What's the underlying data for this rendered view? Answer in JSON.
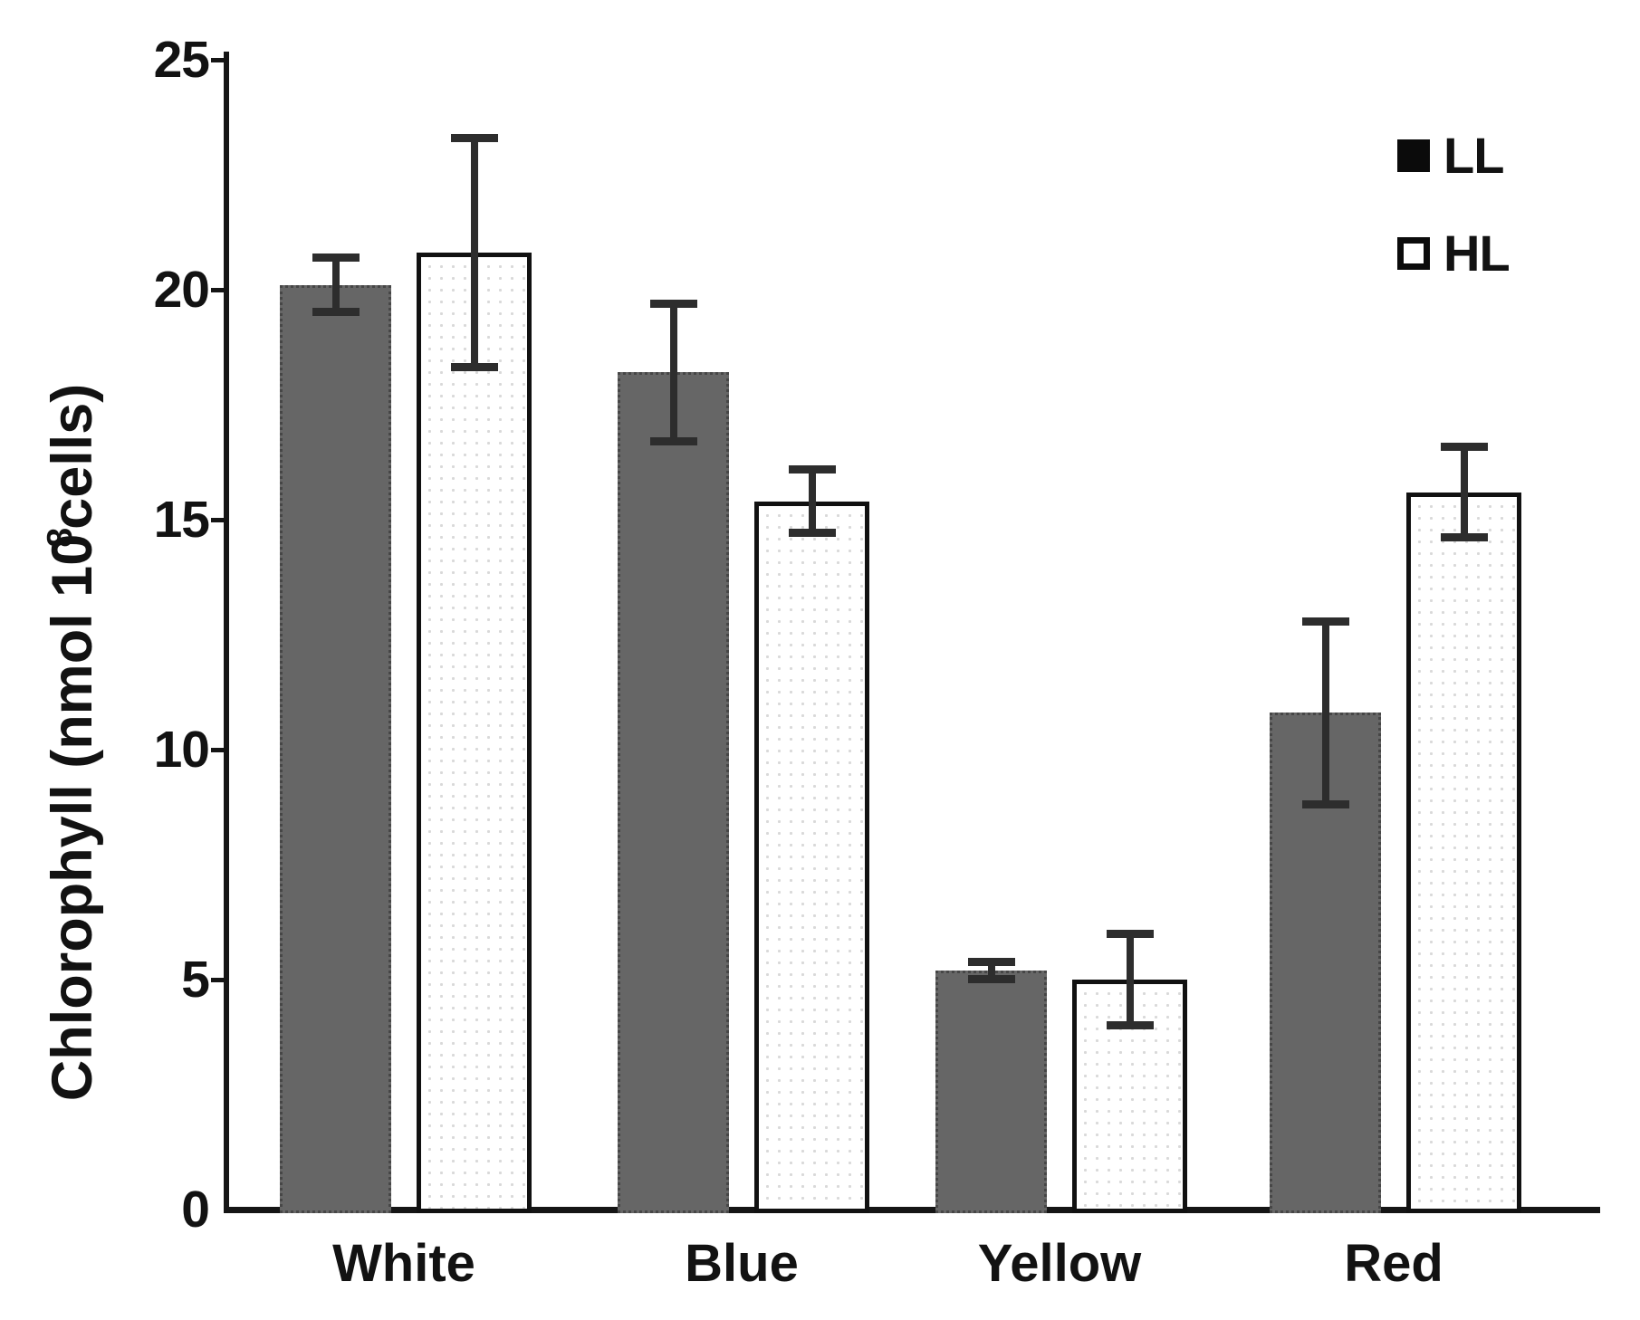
{
  "figure": {
    "background": "#ffffff"
  },
  "y_axis": {
    "label_prefix": "Chlorophyll (nmol 10",
    "label_sup": "8",
    "label_suffix": "cells)",
    "ticks": [
      0,
      5,
      10,
      15,
      20,
      25
    ],
    "range": [
      0,
      25
    ]
  },
  "x_axis": {
    "categories": [
      "White",
      "Blue",
      "Yellow",
      "Red"
    ]
  },
  "legend": {
    "items": [
      {
        "label": "LL",
        "swatch": "filled-black-square"
      },
      {
        "label": "HL",
        "swatch": "open-white-square"
      }
    ]
  },
  "chart_data": {
    "type": "bar",
    "categories": [
      "White",
      "Blue",
      "Yellow",
      "Red"
    ],
    "series": [
      {
        "name": "LL",
        "style": "solid-gray",
        "fill": "#666666",
        "values": [
          20.1,
          18.2,
          5.2,
          10.8
        ],
        "errors": [
          0.6,
          1.5,
          0.2,
          2.0
        ]
      },
      {
        "name": "HL",
        "style": "white-dotted-pattern",
        "fill": "#ffffff",
        "values": [
          20.8,
          15.4,
          5.0,
          15.6
        ],
        "errors": [
          2.5,
          0.7,
          1.0,
          1.0
        ]
      }
    ],
    "title": "",
    "xlabel": "",
    "ylabel": "Chlorophyll (nmol 10^8 cells)",
    "ylim": [
      0,
      25
    ],
    "ytick_step": 5,
    "grid": false,
    "error_bars": true,
    "legend_position": "top-right"
  },
  "colors": {
    "bar_ll_fill": "#666666",
    "bar_hl_fill": "#ffffff",
    "bar_hl_dot": "#d9d9d9",
    "bar_outline": "#111111",
    "error_bar": "#2d2d2d",
    "axis": "#151515",
    "text": "#121212"
  }
}
